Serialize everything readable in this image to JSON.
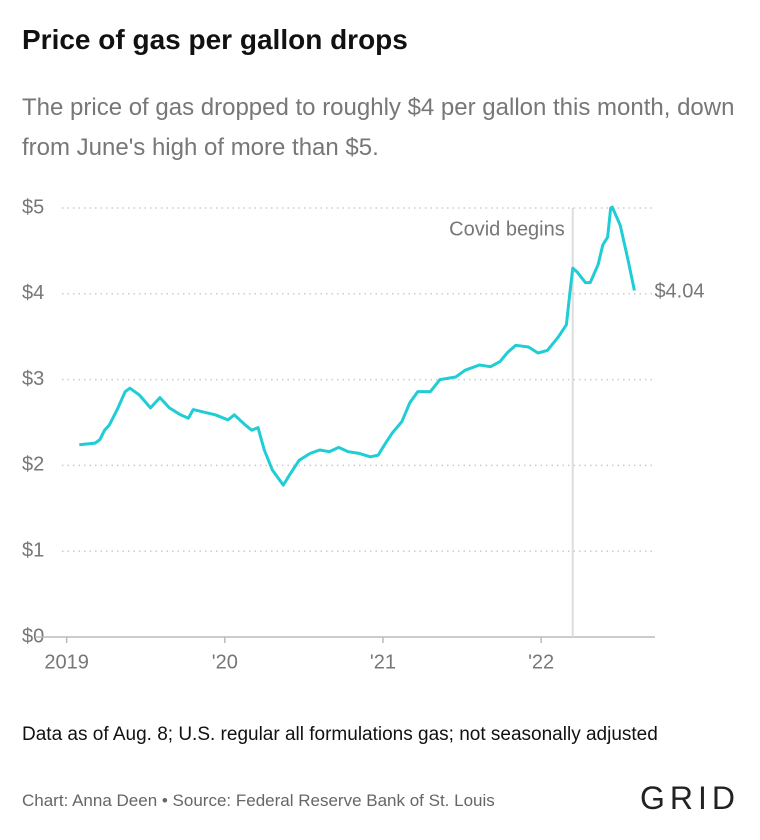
{
  "chart_data": {
    "type": "line",
    "title": "Price of gas per gallon drops",
    "subtitle": "The price of gas dropped to roughly $4 per gallon this month, down from June's high of more than $5.",
    "x": [
      2019.08,
      2019.18,
      2019.21,
      2019.24,
      2019.27,
      2019.32,
      2019.37,
      2019.4,
      2019.46,
      2019.53,
      2019.59,
      2019.65,
      2019.72,
      2019.77,
      2019.8,
      2019.87,
      2019.94,
      2020.02,
      2020.06,
      2020.13,
      2020.17,
      2020.21,
      2020.25,
      2020.3,
      2020.37,
      2020.41,
      2020.47,
      2020.54,
      2020.6,
      2020.66,
      2020.72,
      2020.78,
      2020.85,
      2020.92,
      2020.97,
      2021.01,
      2021.06,
      2021.12,
      2021.17,
      2021.22,
      2021.3,
      2021.36,
      2021.46,
      2021.52,
      2021.61,
      2021.68,
      2021.74,
      2021.79,
      2021.84,
      2021.92,
      2021.98,
      2022.04,
      2022.11,
      2022.16,
      2022.18,
      2022.2,
      2022.23,
      2022.28,
      2022.31,
      2022.36,
      2022.39,
      2022.42,
      2022.44,
      2022.45,
      2022.5,
      2022.55,
      2022.59
    ],
    "series": [
      {
        "name": "Price of gas per gallon",
        "color": "#1fcdd4",
        "values": [
          2.24,
          2.26,
          2.3,
          2.41,
          2.47,
          2.65,
          2.86,
          2.9,
          2.82,
          2.67,
          2.79,
          2.67,
          2.59,
          2.55,
          2.65,
          2.62,
          2.59,
          2.53,
          2.59,
          2.47,
          2.41,
          2.44,
          2.18,
          1.95,
          1.77,
          1.89,
          2.06,
          2.14,
          2.18,
          2.16,
          2.21,
          2.16,
          2.14,
          2.1,
          2.12,
          2.24,
          2.38,
          2.51,
          2.73,
          2.86,
          2.86,
          3.0,
          3.03,
          3.11,
          3.17,
          3.15,
          3.21,
          3.32,
          3.4,
          3.38,
          3.31,
          3.34,
          3.5,
          3.64,
          3.98,
          4.3,
          4.25,
          4.13,
          4.13,
          4.34,
          4.57,
          4.66,
          5.0,
          5.01,
          4.8,
          4.39,
          4.04
        ],
        "value_labels": [
          null,
          null,
          null,
          null,
          null,
          null,
          null,
          null,
          null,
          null,
          null,
          null,
          null,
          null,
          null,
          null,
          null,
          null,
          null,
          null,
          null,
          null,
          null,
          null,
          null,
          null,
          null,
          null,
          null,
          null,
          null,
          null,
          null,
          null,
          null,
          null,
          null,
          null,
          null,
          null,
          null,
          null,
          null,
          null,
          null,
          null,
          null,
          null,
          null,
          null,
          null,
          null,
          null,
          null,
          null,
          null,
          null,
          null,
          null,
          null,
          null,
          null,
          null,
          null,
          null,
          null,
          "$4.04"
        ]
      }
    ],
    "xlim": [
      2018.8,
      2022.72
    ],
    "xticks": [
      {
        "value": 2019,
        "label": "2019"
      },
      {
        "value": 2020,
        "label": "'20"
      },
      {
        "value": 2021,
        "label": "'21"
      },
      {
        "value": 2022,
        "label": "'22"
      }
    ],
    "ylim": [
      0,
      5
    ],
    "yticks": [
      {
        "value": 0,
        "label": "$0"
      },
      {
        "value": 1,
        "label": "$1"
      },
      {
        "value": 2,
        "label": "$2"
      },
      {
        "value": 3,
        "label": "$3"
      },
      {
        "value": 4,
        "label": "$4"
      },
      {
        "value": 5,
        "label": "$5"
      }
    ],
    "grid": true,
    "annotations": [
      {
        "text": "Covid begins",
        "x": 2022.2
      }
    ],
    "note": "Data as of Aug. 8; U.S. regular all formulations gas; not seasonally adjusted",
    "source": "Chart: Anna Deen • Source: Federal Reserve Bank of St. Louis",
    "logo": "GRID"
  }
}
